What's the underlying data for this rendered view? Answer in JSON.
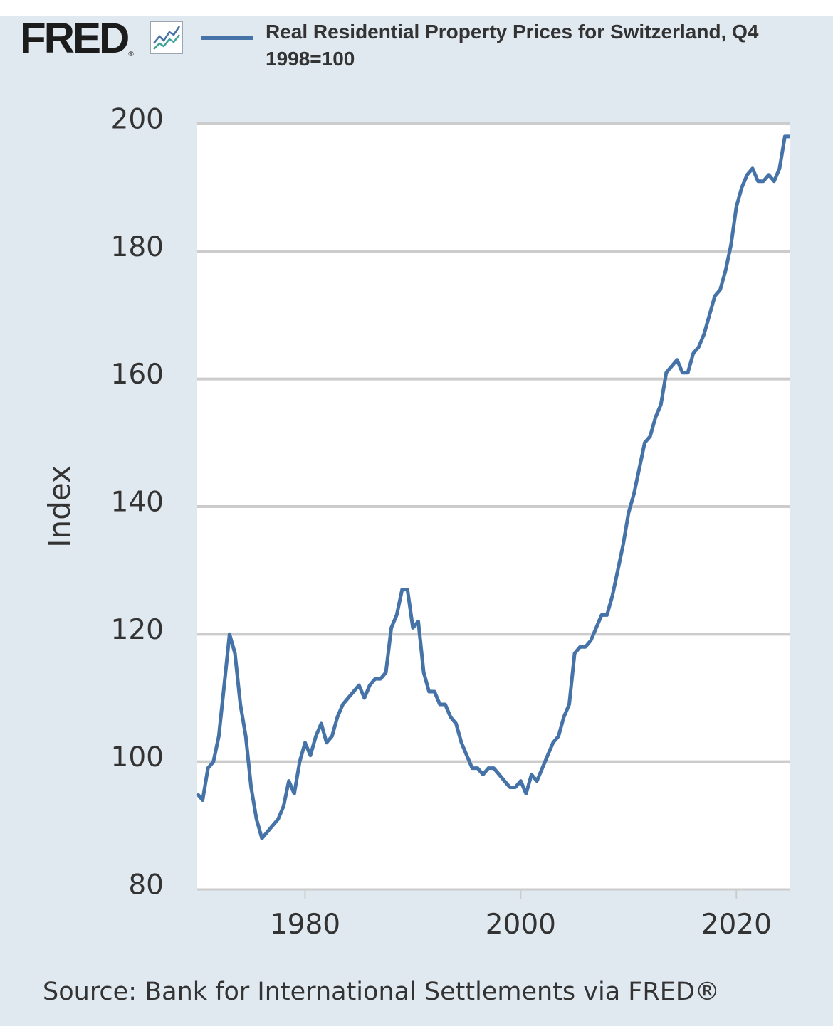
{
  "header": {
    "logo_text": "FRED",
    "logo_reg": "®",
    "logo_icon": "trend-line-chart-icon",
    "legend_label": "Real Residential Property Prices for Switzerland, Q4 1998=100"
  },
  "footer": {
    "source": "Source: Bank for International Settlements via FRED®"
  },
  "colors": {
    "series": "#4572a7",
    "frame_background": "#e1e9f0",
    "plot_background": "#ffffff",
    "gridline": "#cccccc",
    "icon_blue": "#4572a7",
    "icon_green": "#3aa39a"
  },
  "chart_data": {
    "type": "line",
    "title": "",
    "xlabel": "",
    "ylabel": "Index",
    "xlim": [
      1970.0,
      2025.0
    ],
    "ylim": [
      80,
      200
    ],
    "x_ticks": [
      1980,
      2000,
      2020
    ],
    "x_tick_labels": [
      "1980",
      "2000",
      "2020"
    ],
    "y_ticks": [
      80,
      100,
      120,
      140,
      160,
      180,
      200
    ],
    "y_tick_labels": [
      "80",
      "100",
      "120",
      "140",
      "160",
      "180",
      "200"
    ],
    "grid": "horizontal",
    "legend_position": "top",
    "series": [
      {
        "name": "Real Residential Property Prices for Switzerland, Q4 1998=100",
        "x": [
          1970.0,
          1970.5,
          1971.0,
          1971.5,
          1972.0,
          1972.5,
          1973.0,
          1973.5,
          1974.0,
          1974.5,
          1975.0,
          1975.5,
          1976.0,
          1976.5,
          1977.0,
          1977.5,
          1978.0,
          1978.5,
          1979.0,
          1979.5,
          1980.0,
          1980.5,
          1981.0,
          1981.5,
          1982.0,
          1982.5,
          1983.0,
          1983.5,
          1984.0,
          1984.5,
          1985.0,
          1985.5,
          1986.0,
          1986.5,
          1987.0,
          1987.5,
          1988.0,
          1988.5,
          1989.0,
          1989.5,
          1990.0,
          1990.5,
          1991.0,
          1991.5,
          1992.0,
          1992.5,
          1993.0,
          1993.5,
          1994.0,
          1994.5,
          1995.0,
          1995.5,
          1996.0,
          1996.5,
          1997.0,
          1997.5,
          1998.0,
          1998.5,
          1999.0,
          1999.5,
          2000.0,
          2000.5,
          2001.0,
          2001.5,
          2002.0,
          2002.5,
          2003.0,
          2003.5,
          2004.0,
          2004.5,
          2005.0,
          2005.5,
          2006.0,
          2006.5,
          2007.0,
          2007.5,
          2008.0,
          2008.5,
          2009.0,
          2009.5,
          2010.0,
          2010.5,
          2011.0,
          2011.5,
          2012.0,
          2012.5,
          2013.0,
          2013.5,
          2014.0,
          2014.5,
          2015.0,
          2015.5,
          2016.0,
          2016.5,
          2017.0,
          2017.5,
          2018.0,
          2018.5,
          2019.0,
          2019.5,
          2020.0,
          2020.5,
          2021.0,
          2021.5,
          2022.0,
          2022.5,
          2023.0,
          2023.5,
          2024.0,
          2024.5,
          2025.0
        ],
        "values": [
          95,
          94,
          99,
          100,
          104,
          112,
          120,
          117,
          109,
          104,
          96,
          91,
          88,
          89,
          90,
          91,
          93,
          97,
          95,
          100,
          103,
          101,
          104,
          106,
          103,
          104,
          107,
          109,
          110,
          111,
          112,
          110,
          112,
          113,
          113,
          114,
          121,
          123,
          127,
          127,
          121,
          122,
          114,
          111,
          111,
          109,
          109,
          107,
          106,
          103,
          101,
          99,
          99,
          98,
          99,
          99,
          98,
          97,
          96,
          96,
          97,
          95,
          98,
          97,
          99,
          101,
          103,
          104,
          107,
          109,
          117,
          118,
          118,
          119,
          121,
          123,
          123,
          126,
          130,
          134,
          139,
          142,
          146,
          150,
          151,
          154,
          156,
          161,
          162,
          163,
          161,
          161,
          164,
          165,
          167,
          170,
          173,
          174,
          177,
          181,
          187,
          190,
          192,
          193,
          191,
          191,
          192,
          191,
          193,
          198,
          198
        ]
      }
    ]
  }
}
